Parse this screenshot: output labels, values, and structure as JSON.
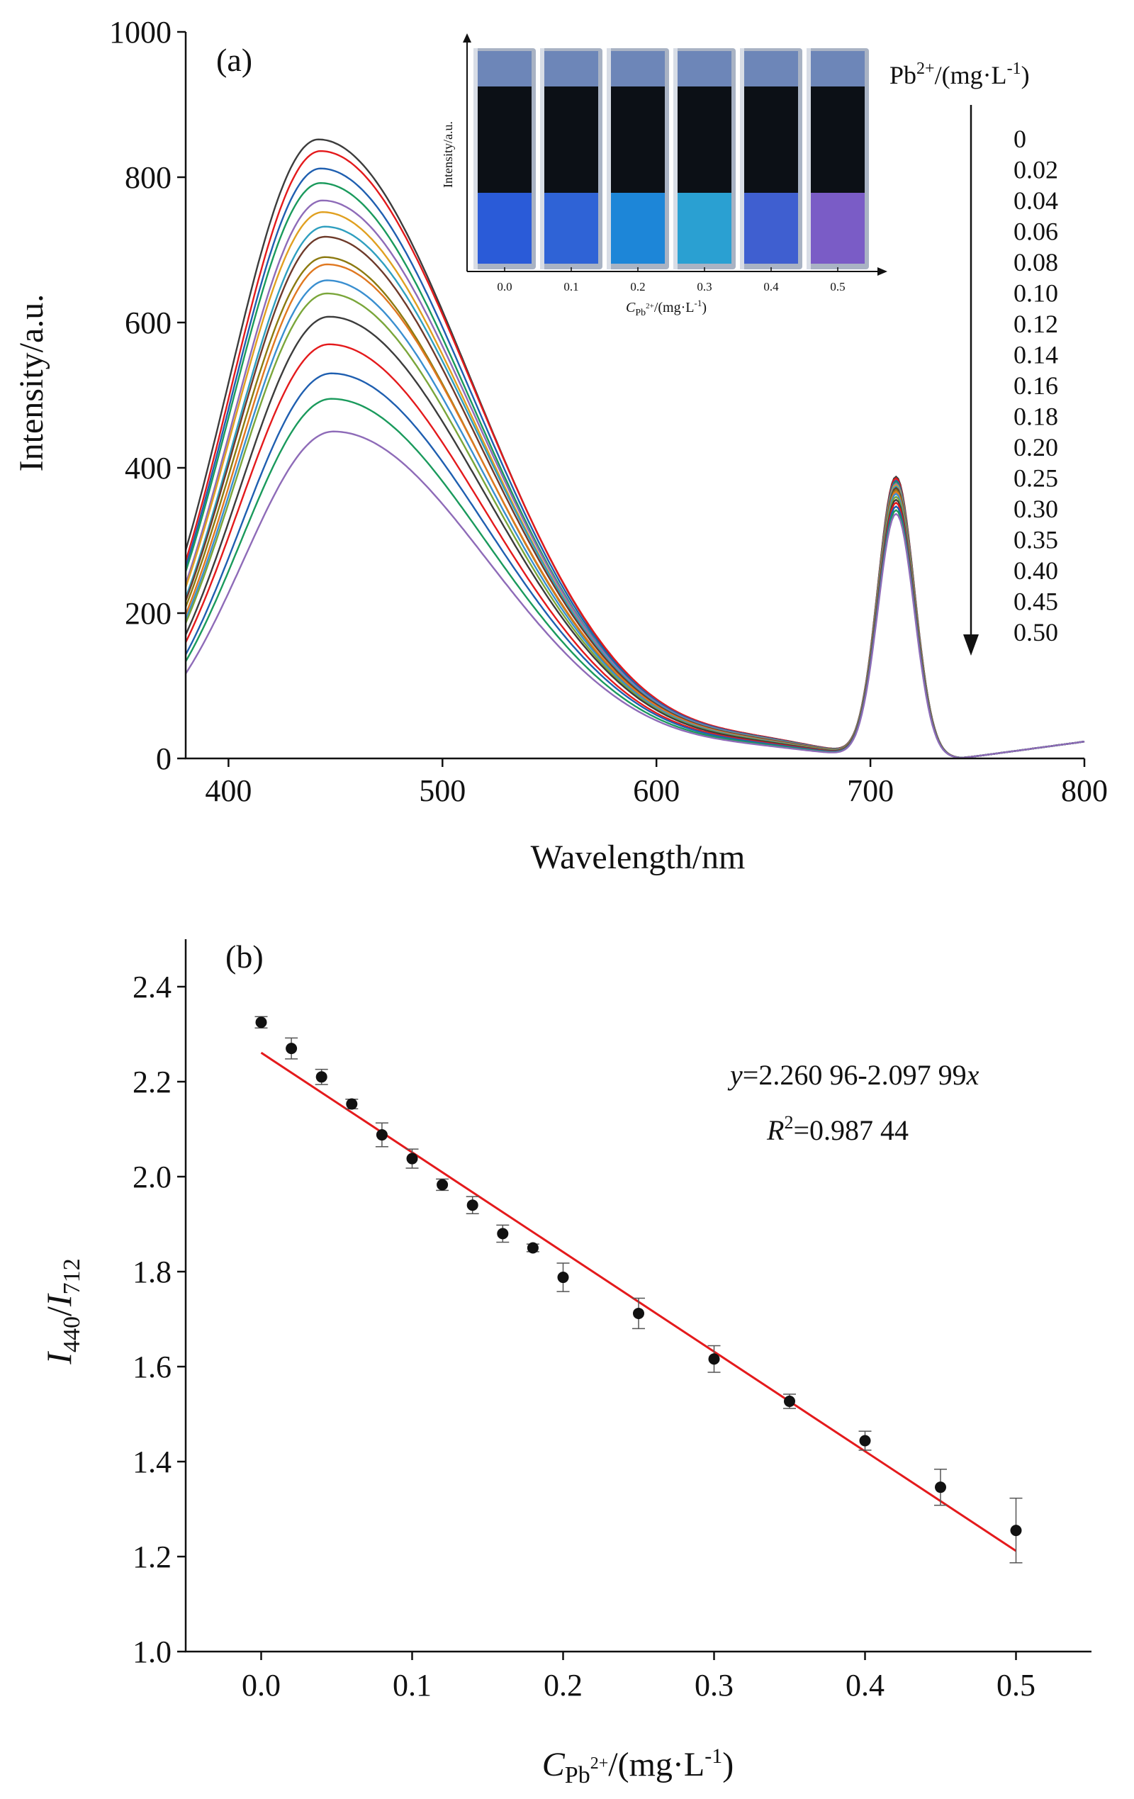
{
  "colors": {
    "axis": "#111111",
    "fit_line": "#e41a1c",
    "points": "#111111",
    "curve_palette": [
      "#3c3c3c",
      "#e41a1c",
      "#1f5fb0",
      "#1a9a5c",
      "#8e6bb8",
      "#e0a020",
      "#2f9fbf",
      "#6e3a2a",
      "#8c7a10",
      "#e07820",
      "#3a8fd0",
      "#7aa63a",
      "#3c3c3c",
      "#e41a1c",
      "#1f5fb0",
      "#1a9a5c",
      "#8e6bb8"
    ]
  },
  "chart_data": [
    {
      "type": "line",
      "panel_label": "(a)",
      "title": "",
      "xlabel": "Wavelength/nm",
      "ylabel": "Intensity/a.u.",
      "xlim": [
        380,
        800
      ],
      "ylim": [
        0,
        1000
      ],
      "xticks": [
        400,
        500,
        600,
        700,
        800
      ],
      "yticks": [
        0,
        200,
        400,
        600,
        800,
        1000
      ],
      "grid": false,
      "legend_title": "Pb2+/(mg·L-1)",
      "legend_title_parts": {
        "base": "Pb",
        "sup": "2+",
        "rest": "/(mg·L",
        "sup2": "-1",
        "close": ")"
      },
      "legend_placement": "right, top to bottom with downward arrow",
      "series": [
        {
          "name": "0",
          "peak1": 852,
          "peak1_x": 442,
          "peak2": 385
        },
        {
          "name": "0.02",
          "peak1": 836,
          "peak1_x": 443,
          "peak2": 383
        },
        {
          "name": "0.04",
          "peak1": 812,
          "peak1_x": 443,
          "peak2": 380
        },
        {
          "name": "0.06",
          "peak1": 792,
          "peak1_x": 443,
          "peak2": 378
        },
        {
          "name": "0.08",
          "peak1": 768,
          "peak1_x": 444,
          "peak2": 376
        },
        {
          "name": "0.10",
          "peak1": 752,
          "peak1_x": 444,
          "peak2": 374
        },
        {
          "name": "0.12",
          "peak1": 732,
          "peak1_x": 445,
          "peak2": 372
        },
        {
          "name": "0.14",
          "peak1": 718,
          "peak1_x": 445,
          "peak2": 370
        },
        {
          "name": "0.16",
          "peak1": 690,
          "peak1_x": 445,
          "peak2": 367
        },
        {
          "name": "0.18",
          "peak1": 680,
          "peak1_x": 446,
          "peak2": 365
        },
        {
          "name": "0.20",
          "peak1": 658,
          "peak1_x": 446,
          "peak2": 362
        },
        {
          "name": "0.25",
          "peak1": 640,
          "peak1_x": 446,
          "peak2": 358
        },
        {
          "name": "0.30",
          "peak1": 608,
          "peak1_x": 447,
          "peak2": 354
        },
        {
          "name": "0.35",
          "peak1": 570,
          "peak1_x": 447,
          "peak2": 350
        },
        {
          "name": "0.40",
          "peak1": 530,
          "peak1_x": 448,
          "peak2": 345
        },
        {
          "name": "0.45",
          "peak1": 495,
          "peak1_x": 448,
          "peak2": 340
        },
        {
          "name": "0.50",
          "peak1": 450,
          "peak1_x": 449,
          "peak2": 335
        }
      ],
      "inset": {
        "type": "photo",
        "ylabel": "Intensity/a.u.",
        "xlabel_parts": {
          "var": "C",
          "sub": "Pb",
          "subsup": "2+",
          "rest": "/(mg·L",
          "sup": "-1",
          "close": ")"
        },
        "xticks": [
          "0.0",
          "0.1",
          "0.2",
          "0.3",
          "0.4",
          "0.5"
        ],
        "cuvette_colors": [
          "#2a5bd8",
          "#2f63d6",
          "#1d86d8",
          "#2aa0d2",
          "#3f5fd0",
          "#7a5cc6"
        ]
      }
    },
    {
      "type": "scatter",
      "panel_label": "(b)",
      "title": "",
      "xlabel_parts": {
        "var": "C",
        "sub": "Pb",
        "subsup": "2+",
        "rest": "/(mg·L",
        "sup": "-1",
        "close": ")"
      },
      "ylabel_parts": {
        "a": "I",
        "a_sub": "440",
        "slash": "/",
        "b": "I",
        "b_sub": "712"
      },
      "xlim": [
        -0.05,
        0.55
      ],
      "ylim": [
        1.0,
        2.5
      ],
      "xticks": [
        "0.0",
        "0.1",
        "0.2",
        "0.3",
        "0.4",
        "0.5"
      ],
      "yticks": [
        "1.0",
        "1.2",
        "1.4",
        "1.6",
        "1.8",
        "2.0",
        "2.2",
        "2.4"
      ],
      "grid": false,
      "points": [
        {
          "x": 0.0,
          "y": 2.325,
          "err": 0.012
        },
        {
          "x": 0.02,
          "y": 2.27,
          "err": 0.022
        },
        {
          "x": 0.04,
          "y": 2.21,
          "err": 0.016
        },
        {
          "x": 0.06,
          "y": 2.153,
          "err": 0.01
        },
        {
          "x": 0.08,
          "y": 2.088,
          "err": 0.025
        },
        {
          "x": 0.1,
          "y": 2.038,
          "err": 0.02
        },
        {
          "x": 0.12,
          "y": 1.983,
          "err": 0.012
        },
        {
          "x": 0.14,
          "y": 1.94,
          "err": 0.018
        },
        {
          "x": 0.16,
          "y": 1.88,
          "err": 0.018
        },
        {
          "x": 0.18,
          "y": 1.85,
          "err": 0.008
        },
        {
          "x": 0.2,
          "y": 1.788,
          "err": 0.03
        },
        {
          "x": 0.25,
          "y": 1.712,
          "err": 0.032
        },
        {
          "x": 0.3,
          "y": 1.616,
          "err": 0.028
        },
        {
          "x": 0.35,
          "y": 1.527,
          "err": 0.015
        },
        {
          "x": 0.4,
          "y": 1.444,
          "err": 0.02
        },
        {
          "x": 0.45,
          "y": 1.346,
          "err": 0.038
        },
        {
          "x": 0.5,
          "y": 1.255,
          "err": 0.068
        }
      ],
      "fit": {
        "intercept": 2.26096,
        "slope": -2.09799,
        "x_range": [
          0.0,
          0.5
        ]
      },
      "equation_parts": {
        "var": "y",
        "rest": "=2.260 96-2.097 99",
        "x": "x"
      },
      "r2_parts": {
        "var": "R",
        "sup": "2",
        "rest": "=0.987 44"
      }
    }
  ]
}
